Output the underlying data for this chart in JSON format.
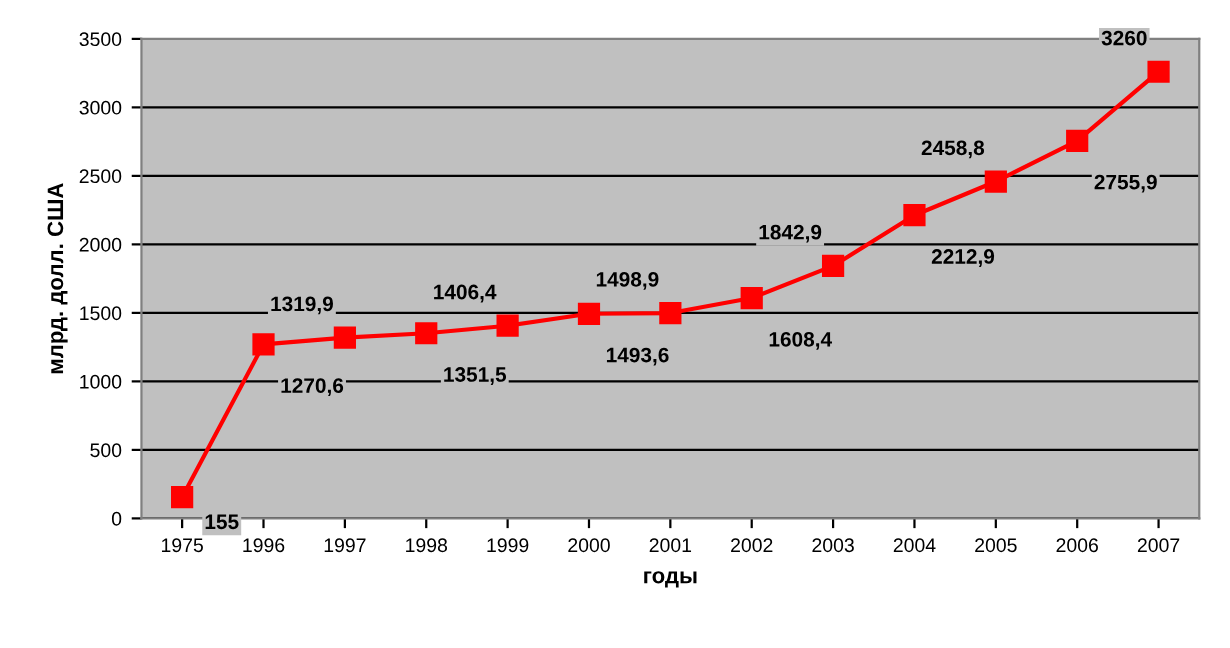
{
  "chart_data": {
    "type": "line",
    "xlabel": "годы",
    "ylabel": "млрд. долл. США",
    "categories": [
      "1975",
      "1996",
      "1997",
      "1998",
      "1999",
      "2000",
      "2001",
      "2002",
      "2003",
      "2004",
      "2005",
      "2006",
      "2007"
    ],
    "series": [
      {
        "color": "#ff0000",
        "values": [
          155,
          1270.6,
          1319.9,
          1351.5,
          1406.4,
          1493.6,
          1498.9,
          1608.4,
          1842.9,
          2212.9,
          2458.8,
          2755.9,
          3260
        ],
        "value_labels": [
          "155",
          "1270,6",
          "1319,9",
          "1351,5",
          "1406,4",
          "1493,6",
          "1498,9",
          "1608,4",
          "1842,9",
          "2212,9",
          "2458,8",
          "2755,9",
          "3260"
        ]
      }
    ],
    "ylim": [
      0,
      3500
    ],
    "yticks": [
      0,
      500,
      1000,
      1500,
      2000,
      2500,
      3000,
      3500
    ],
    "grid": "y",
    "marker": "square",
    "line_style": "solid"
  }
}
